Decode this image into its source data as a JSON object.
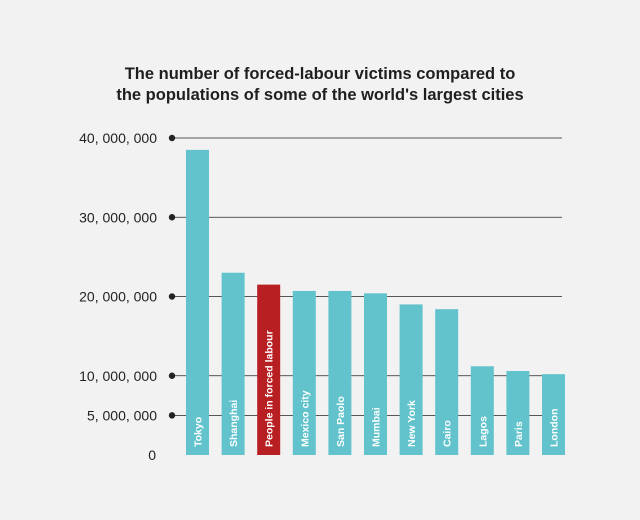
{
  "chart_data": {
    "type": "bar",
    "title_lines": [
      "The number of forced-labour victims compared to",
      "the populations of some of the world's largest cities"
    ],
    "categories": [
      "Tokyo",
      "Shanghai",
      "People in forced labour",
      "Mexico city",
      "San Paolo",
      "Mumbai",
      "New York",
      "Cairo",
      "Lagos",
      "Paris",
      "London"
    ],
    "values": [
      38500000,
      23000000,
      21500000,
      20700000,
      20700000,
      20400000,
      19000000,
      18400000,
      11200000,
      10600000,
      10200000
    ],
    "highlight_index": 2,
    "colors": {
      "bar": "#62c3cc",
      "highlight": "#b71f22",
      "grid": "#222222",
      "background": "#f2f2f2"
    },
    "yticks": [
      {
        "value": 0,
        "label": "0"
      },
      {
        "value": 5000000,
        "label": "5, 000, 000"
      },
      {
        "value": 10000000,
        "label": "10, 000, 000"
      },
      {
        "value": 20000000,
        "label": "20, 000, 000"
      },
      {
        "value": 30000000,
        "label": "30, 000, 000"
      },
      {
        "value": 40000000,
        "label": "40, 000, 000"
      }
    ],
    "ylim": [
      0,
      40000000
    ],
    "grid": true,
    "xlabel": "",
    "ylabel": ""
  }
}
